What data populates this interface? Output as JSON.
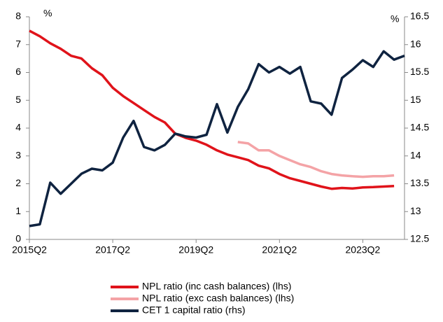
{
  "chart_data": {
    "type": "line",
    "y_unit_left": "%",
    "y_unit_right": "%",
    "categories": [
      "2015Q2",
      null,
      null,
      null,
      null,
      null,
      null,
      null,
      "2017Q2",
      null,
      null,
      null,
      null,
      null,
      null,
      null,
      "2019Q2",
      null,
      null,
      null,
      null,
      null,
      null,
      null,
      "2021Q2",
      null,
      null,
      null,
      null,
      null,
      null,
      null,
      "2023Q2",
      null,
      null,
      null,
      null
    ],
    "ylim": [
      0,
      8
    ],
    "yticks": [
      0,
      1,
      2,
      3,
      4,
      5,
      6,
      7,
      8
    ],
    "y2lim": [
      12.5,
      16.5
    ],
    "y2ticks": [
      12.5,
      13,
      13.5,
      14,
      14.5,
      15,
      15.5,
      16,
      16.5
    ],
    "legend": "bottom",
    "series": [
      {
        "name": "NPL ratio (inc cash balances) (lhs)",
        "color": "#e0131a",
        "axis": "y",
        "values": [
          7.5,
          7.3,
          7.05,
          6.85,
          6.6,
          6.5,
          6.15,
          5.9,
          5.45,
          5.15,
          4.9,
          4.65,
          4.4,
          4.2,
          3.8,
          3.65,
          3.55,
          3.4,
          3.2,
          3.05,
          2.95,
          2.85,
          2.65,
          2.55,
          2.35,
          2.2,
          2.1,
          2.0,
          1.9,
          1.82,
          1.85,
          1.83,
          1.87,
          1.88,
          1.9,
          1.92,
          null
        ]
      },
      {
        "name": "NPL ratio (exc cash balances) (lhs)",
        "color": "#f4a3a6",
        "axis": "y",
        "values": [
          null,
          null,
          null,
          null,
          null,
          null,
          null,
          null,
          null,
          null,
          null,
          null,
          null,
          null,
          null,
          null,
          null,
          null,
          null,
          null,
          3.5,
          3.45,
          3.2,
          3.2,
          3.0,
          2.85,
          2.7,
          2.6,
          2.45,
          2.35,
          2.3,
          2.27,
          2.25,
          2.27,
          2.27,
          2.3,
          null
        ]
      },
      {
        "name": "CET 1 capital ratio (rhs)",
        "color": "#0f2340",
        "axis": "y2",
        "values": [
          12.74,
          12.77,
          13.52,
          13.32,
          13.5,
          13.68,
          13.77,
          13.74,
          13.88,
          14.33,
          14.63,
          14.16,
          14.1,
          14.2,
          14.4,
          14.35,
          14.33,
          14.38,
          14.93,
          14.42,
          14.88,
          15.2,
          15.65,
          15.5,
          15.6,
          15.48,
          15.6,
          14.98,
          14.94,
          14.74,
          15.4,
          15.55,
          15.72,
          15.6,
          15.88,
          15.73,
          15.8
        ]
      }
    ]
  }
}
